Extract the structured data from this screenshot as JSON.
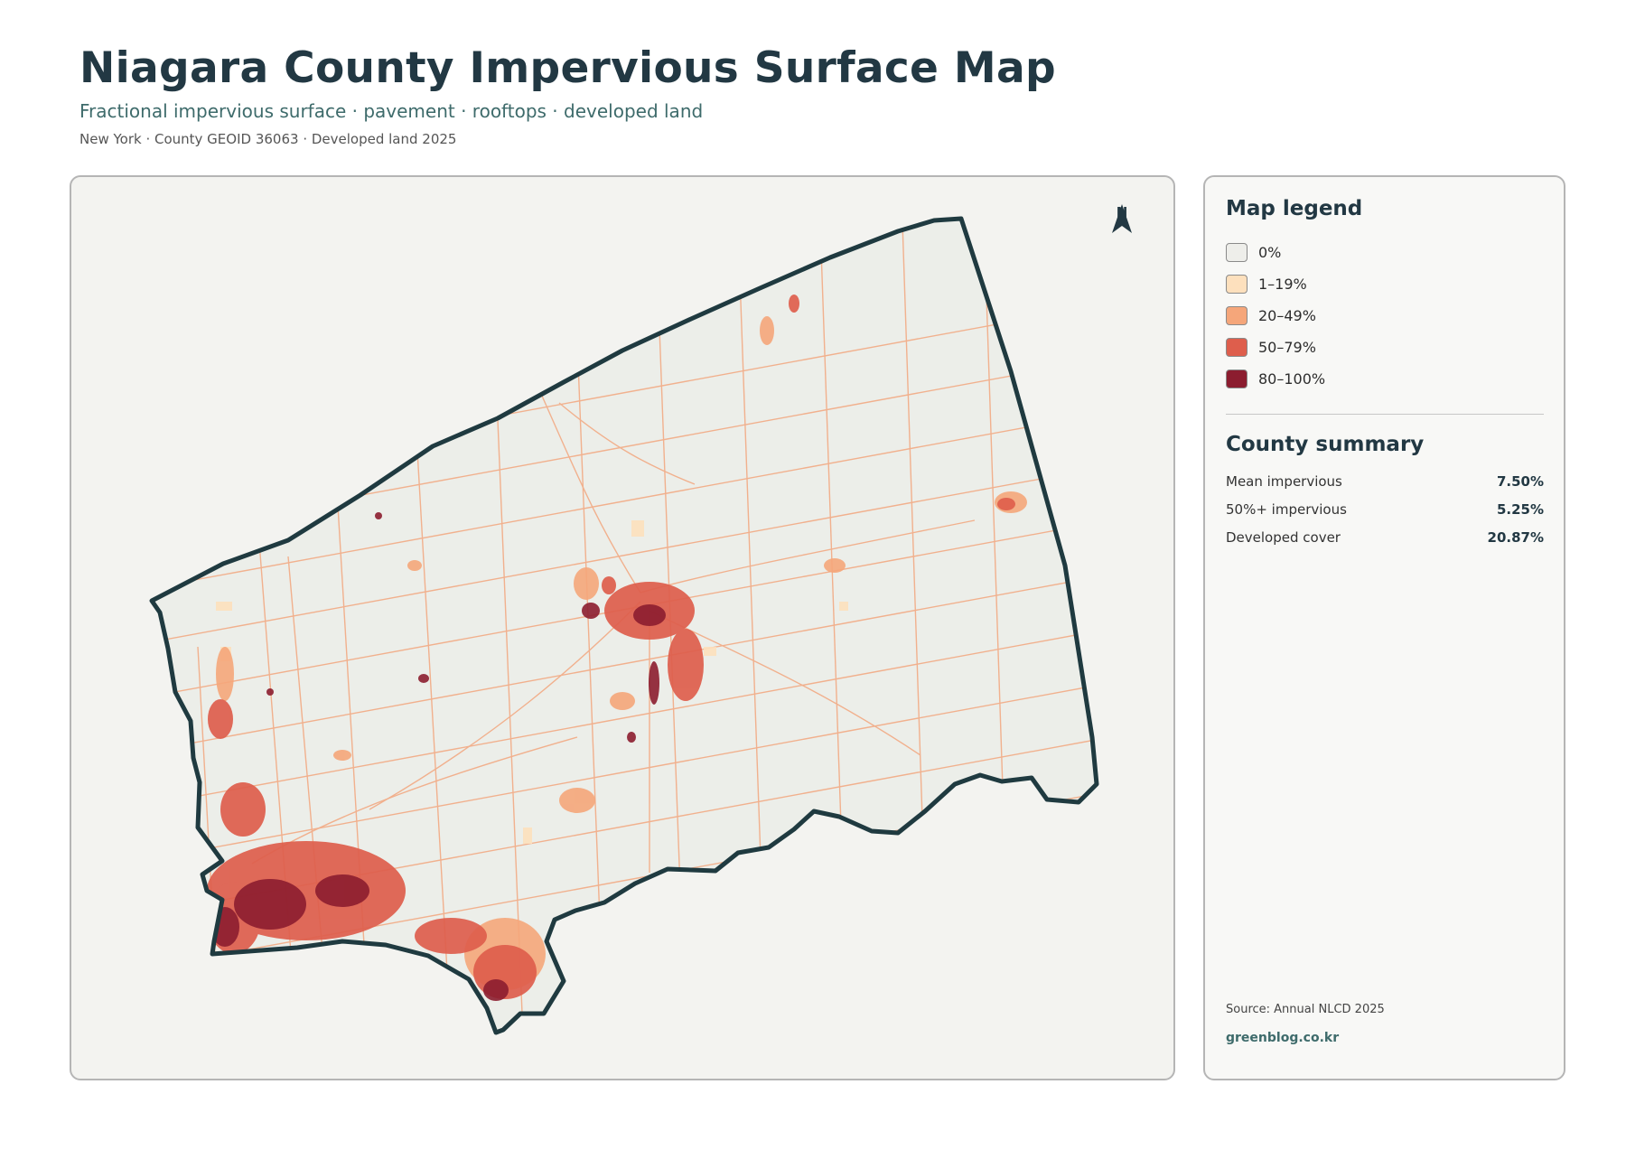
{
  "header": {
    "title": "Niagara County Impervious Surface Map",
    "subtitle": "Fractional impervious surface · pavement · rooftops · developed land",
    "meta": "New York · County GEOID 36063 · Developed land 2025"
  },
  "map": {
    "north_label": "N",
    "outline_color": "#1f3a40",
    "background_color": "#eceee9"
  },
  "legend": {
    "title": "Map legend",
    "items": [
      {
        "label": "0%",
        "color": "#eeeeea"
      },
      {
        "label": "1–19%",
        "color": "#fde0bd"
      },
      {
        "label": "20–49%",
        "color": "#f5a67a"
      },
      {
        "label": "50–79%",
        "color": "#de5e4c"
      },
      {
        "label": "80–100%",
        "color": "#8c1d2f"
      }
    ]
  },
  "summary": {
    "title": "County summary",
    "rows": [
      {
        "label": "Mean impervious",
        "value": "7.50%"
      },
      {
        "label": "50%+ impervious",
        "value": "5.25%"
      },
      {
        "label": "Developed cover",
        "value": "20.87%"
      }
    ]
  },
  "footer": {
    "source": "Source: Annual NLCD 2025",
    "credit": "greenblog.co.kr"
  }
}
